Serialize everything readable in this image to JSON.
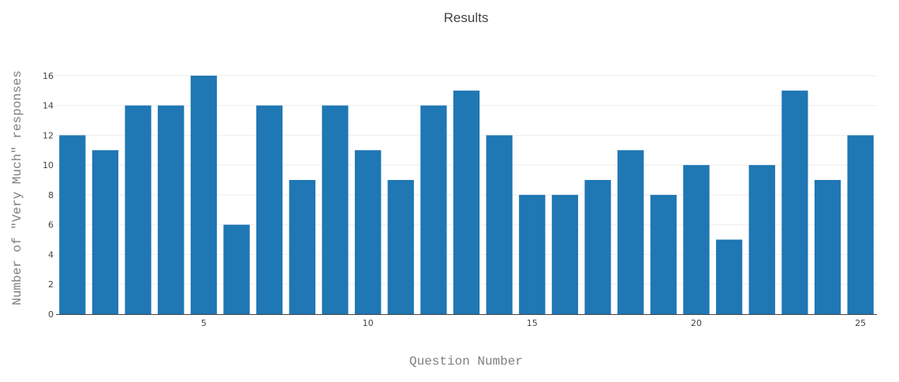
{
  "chart_data": {
    "type": "bar",
    "title": "Results",
    "xlabel": "Question Number",
    "ylabel": "Number of \"Very Much\" responses",
    "x": [
      1,
      2,
      3,
      4,
      5,
      6,
      7,
      8,
      9,
      10,
      11,
      12,
      13,
      14,
      15,
      16,
      17,
      18,
      19,
      20,
      21,
      22,
      23,
      24,
      25
    ],
    "values": [
      12,
      11,
      14,
      14,
      16,
      6,
      14,
      9,
      14,
      11,
      9,
      14,
      15,
      12,
      8,
      8,
      9,
      11,
      8,
      10,
      5,
      10,
      15,
      9,
      12
    ],
    "xticks": [
      5,
      10,
      15,
      20,
      25
    ],
    "yticks": [
      0,
      2,
      4,
      6,
      8,
      10,
      12,
      14,
      16
    ],
    "xlim": [
      0.5,
      25.5
    ],
    "ylim": [
      0,
      16.84
    ],
    "grid": true,
    "bar_color": "#1f77b4"
  }
}
